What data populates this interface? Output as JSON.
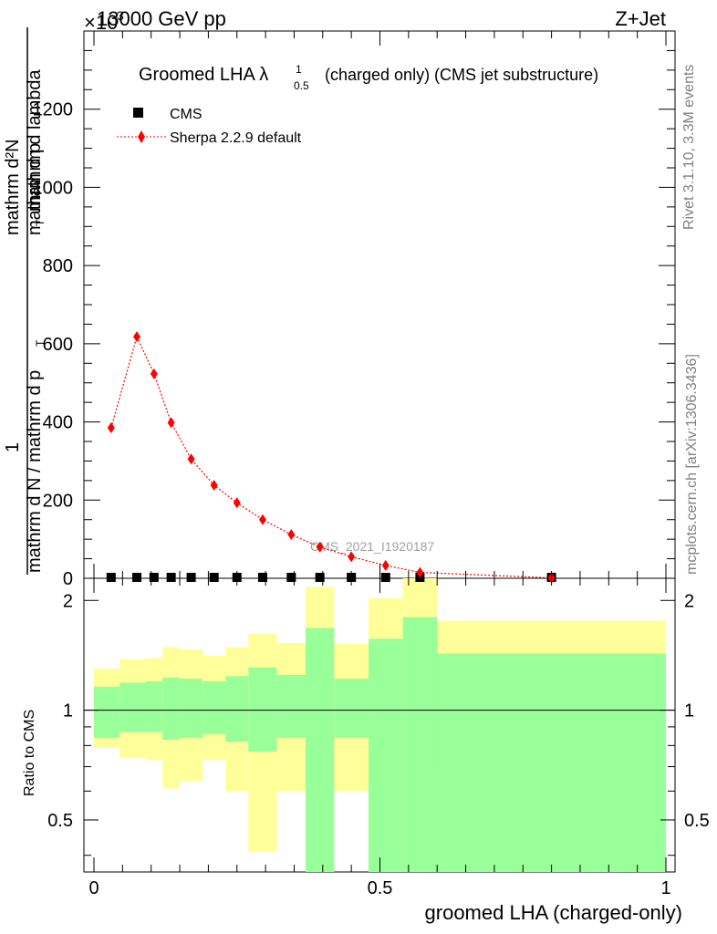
{
  "header": {
    "left": "13000 GeV pp",
    "right": "Z+Jet",
    "exponent_prefix": "×10",
    "exponent_power": "3"
  },
  "title": {
    "main": "Groomed LHA λ",
    "sub": "0.5",
    "sup": "1",
    "rest": "(charged only) (CMS jet substructure)"
  },
  "side_labels": {
    "rivet": "Rivet 3.1.10,  3.3M events",
    "mcplots": "mcplots.cern.ch [arXiv:1306.3436]"
  },
  "watermark": "CMS_2021_I1920187",
  "legend": {
    "cms": "CMS",
    "mc": "Sherpa 2.2.9 default"
  },
  "colors": {
    "mc": "#ff0000",
    "band_inner": "#99ff99",
    "band_outer": "#ffff99",
    "data": "#000000"
  },
  "chart_data": {
    "type": "line",
    "top_panel": {
      "ylabel": "1 / (mathrm d N / mathrm d p_T) · mathrm d²N / (mathrm d p_T mathrm d lambda)",
      "ylabel_top": "mathrm d²N",
      "ylabel_bottom_left": "1",
      "ylabel_denominator": "mathrm d N / mathrm d p",
      "ylabel_numerator_mid": "mathrm d p",
      "ylabel_numerator_tail": "mathrm d lambda",
      "ylabel_mid": "mathrm d",
      "ylabel_sub": "T",
      "ylim": [
        0,
        1400
      ],
      "yticks": [
        0,
        200,
        400,
        600,
        800,
        1000,
        1200
      ],
      "ytick_labels": [
        "0",
        "200",
        "400",
        "600",
        "800",
        "1000",
        "1200"
      ],
      "x": [
        0.03,
        0.075,
        0.105,
        0.135,
        0.17,
        0.21,
        0.25,
        0.295,
        0.345,
        0.395,
        0.45,
        0.51,
        0.57,
        0.8
      ],
      "cms": [
        0,
        0,
        0,
        0,
        0,
        0,
        0,
        0,
        0,
        0,
        0,
        0,
        0,
        0
      ],
      "sherpa": [
        385,
        618,
        523,
        398,
        305,
        238,
        193,
        150,
        112,
        80,
        55,
        33,
        15,
        1
      ]
    },
    "ratio_panel": {
      "ylabel": "Ratio to CMS",
      "ylim": [
        0.36,
        2.3
      ],
      "yticks": [
        0.5,
        1,
        2
      ],
      "ytick_labels": [
        "0.5",
        "1",
        "2"
      ],
      "bin_edges": [
        0.0,
        0.045,
        0.09,
        0.12,
        0.15,
        0.19,
        0.23,
        0.27,
        0.32,
        0.37,
        0.42,
        0.48,
        0.54,
        0.6,
        1.0
      ],
      "inner_lo": [
        0.84,
        0.87,
        0.87,
        0.83,
        0.84,
        0.86,
        0.82,
        0.77,
        0.84,
        0.36,
        0.84,
        0.36,
        0.36,
        0.36
      ],
      "inner_hi": [
        1.16,
        1.19,
        1.2,
        1.23,
        1.22,
        1.2,
        1.24,
        1.31,
        1.25,
        1.68,
        1.22,
        1.57,
        1.8,
        1.43
      ],
      "outer_lo": [
        0.79,
        0.74,
        0.73,
        0.61,
        0.64,
        0.73,
        0.6,
        0.41,
        0.6,
        0.36,
        0.6,
        0.36,
        0.36,
        0.68
      ],
      "outer_hi": [
        1.3,
        1.38,
        1.39,
        1.49,
        1.47,
        1.41,
        1.49,
        1.62,
        1.53,
        2.18,
        1.52,
        2.03,
        2.4,
        1.76
      ]
    },
    "x_axis": {
      "xlabel": "groomed LHA (charged-only)",
      "xlim": [
        0,
        1
      ],
      "xticks": [
        0,
        0.5,
        1
      ],
      "xtick_labels": [
        "0",
        "0.5",
        "1"
      ]
    }
  }
}
